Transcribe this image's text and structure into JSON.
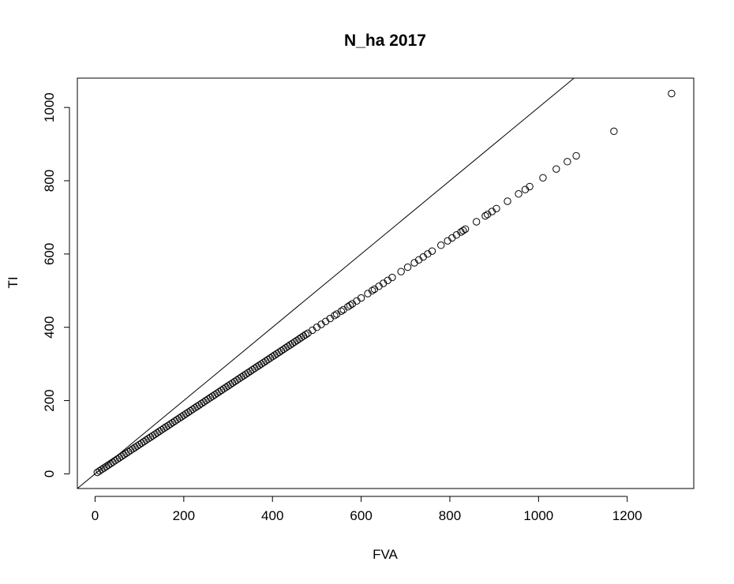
{
  "chart_data": {
    "type": "scatter",
    "title": "N_ha 2017",
    "xlabel": "FVA",
    "ylabel": "TI",
    "xlim": [
      -40,
      1350
    ],
    "ylim": [
      -40,
      1080
    ],
    "xticks": [
      0,
      200,
      400,
      600,
      800,
      1000,
      1200
    ],
    "yticks": [
      0,
      200,
      400,
      600,
      800,
      1000
    ],
    "grid": false,
    "legend": "none",
    "reference_line": {
      "type": "identity",
      "slope": 1,
      "intercept": 0
    },
    "series": [
      {
        "marker": "open-circle",
        "x": [
          5,
          10,
          15,
          20,
          25,
          30,
          35,
          40,
          45,
          50,
          55,
          60,
          65,
          70,
          75,
          80,
          85,
          90,
          95,
          100,
          105,
          110,
          115,
          120,
          125,
          130,
          135,
          140,
          145,
          150,
          155,
          160,
          165,
          170,
          175,
          180,
          185,
          190,
          195,
          200,
          205,
          210,
          215,
          220,
          225,
          230,
          235,
          240,
          245,
          250,
          255,
          260,
          265,
          270,
          275,
          280,
          285,
          290,
          295,
          300,
          305,
          310,
          315,
          320,
          325,
          330,
          335,
          340,
          345,
          350,
          355,
          360,
          365,
          370,
          375,
          380,
          385,
          390,
          395,
          400,
          405,
          410,
          415,
          420,
          425,
          430,
          435,
          440,
          445,
          450,
          455,
          460,
          465,
          470,
          475,
          480,
          490,
          500,
          510,
          520,
          530,
          540,
          545,
          555,
          560,
          570,
          575,
          580,
          590,
          600,
          615,
          625,
          630,
          640,
          650,
          660,
          670,
          690,
          705,
          720,
          730,
          740,
          750,
          760,
          780,
          795,
          805,
          815,
          825,
          830,
          835,
          860,
          880,
          885,
          895,
          905,
          930,
          955,
          970,
          980,
          1010,
          1040,
          1065,
          1085,
          1170,
          1300
        ],
        "y": [
          4,
          8,
          12,
          16,
          20,
          24,
          28,
          32,
          36,
          40,
          44,
          48,
          52,
          56,
          60,
          64,
          68,
          72,
          76,
          80,
          84,
          88,
          92,
          96,
          100,
          104,
          108,
          112,
          116,
          120,
          124,
          128,
          132,
          136,
          140,
          144,
          148,
          152,
          156,
          160,
          164,
          168,
          172,
          176,
          180,
          184,
          188,
          192,
          196,
          200,
          204,
          208,
          212,
          216,
          220,
          224,
          228,
          232,
          236,
          240,
          244,
          248,
          252,
          256,
          260,
          264,
          268,
          272,
          276,
          280,
          284,
          288,
          292,
          296,
          300,
          304,
          308,
          312,
          316,
          320,
          324,
          328,
          332,
          336,
          340,
          344,
          348,
          352,
          356,
          360,
          364,
          368,
          372,
          376,
          380,
          384,
          392,
          400,
          408,
          416,
          424,
          432,
          436,
          444,
          448,
          456,
          460,
          464,
          472,
          480,
          492,
          500,
          504,
          512,
          520,
          528,
          536,
          552,
          564,
          576,
          584,
          592,
          600,
          608,
          624,
          636,
          644,
          652,
          660,
          664,
          668,
          688,
          704,
          708,
          716,
          724,
          744,
          764,
          776,
          784,
          808,
          832,
          852,
          868,
          935,
          1038
        ]
      }
    ]
  }
}
